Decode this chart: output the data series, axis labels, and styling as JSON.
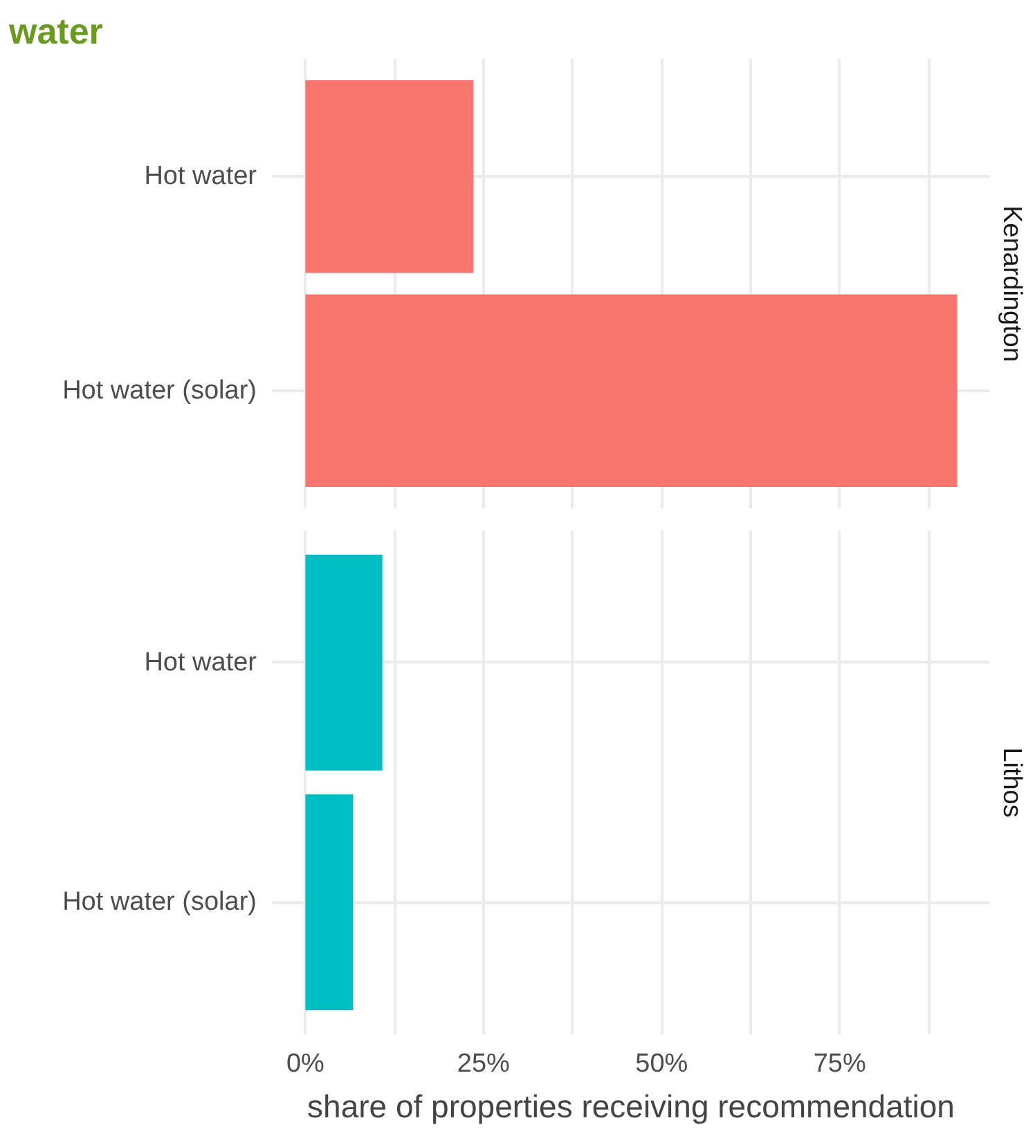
{
  "chart_data": [
    {
      "type": "bar",
      "orientation": "horizontal",
      "title": "water",
      "categories": [
        "Hot water",
        "Hot water (solar)"
      ],
      "values": [
        23.6,
        91.5
      ],
      "color": "#f8766d",
      "xlim": [
        -4.7,
        96.1
      ],
      "xticks": [
        0,
        12.5,
        25,
        37.5,
        50,
        62.5,
        75,
        87.5
      ],
      "grid": true,
      "tick_labels": "y",
      "annotations": [
        "Kenardington"
      ]
    },
    {
      "type": "bar",
      "orientation": "horizontal",
      "categories": [
        "Hot water",
        "Hot water (solar)"
      ],
      "values": [
        10.8,
        6.7
      ],
      "color": "#00bfc4",
      "xlim": [
        -4.7,
        96.1
      ],
      "xticks": [
        {
          "value": 0,
          "label": "0%"
        },
        {
          "value": 12.5,
          "label": null
        },
        {
          "value": 25,
          "label": "25%"
        },
        {
          "value": 37.5,
          "label": null
        },
        {
          "value": 50,
          "label": "50%"
        },
        {
          "value": 62.5,
          "label": null
        },
        {
          "value": 75,
          "label": "75%"
        },
        {
          "value": 87.5,
          "label": null
        }
      ],
      "grid": true,
      "xlabel": "share of properties receiving recommendation",
      "annotations": [
        "Lithos"
      ]
    }
  ]
}
